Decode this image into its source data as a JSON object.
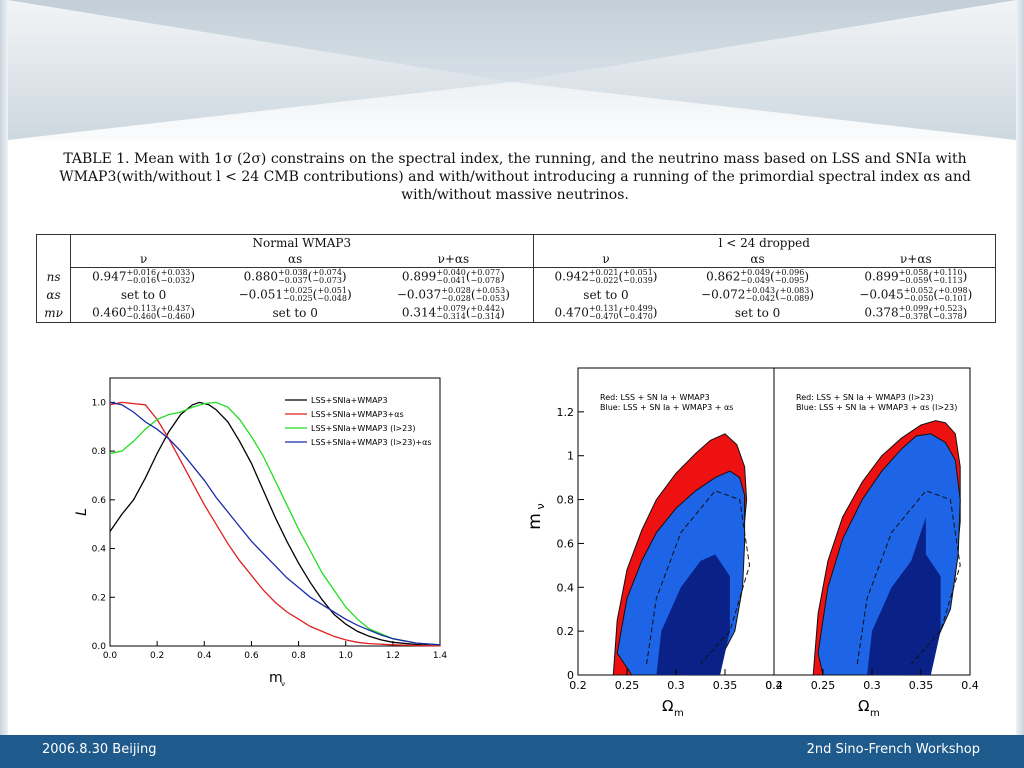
{
  "caption": {
    "text": "TABLE 1. Mean with 1σ (2σ) constrains on the spectral index, the running, and the neutrino mass based on LSS and SNIa with WMAP3(with/without l < 24 CMB contributions) and with/without introducing a running of the primordial spectral index αs and with/without massive neutrinos."
  },
  "table": {
    "group_headers": [
      "Normal WMAP3",
      "l < 24 dropped"
    ],
    "column_headers": [
      "ν",
      "αs",
      "ν+αs",
      "ν",
      "αs",
      "ν+αs"
    ],
    "rows": [
      {
        "label": "ns",
        "cells": [
          {
            "v": "0.947",
            "up": "+0.016",
            "dn": "−0.016",
            "up2": "+0.033",
            "dn2": "−0.032"
          },
          {
            "v": "0.880",
            "up": "+0.038",
            "dn": "−0.037",
            "up2": "+0.074",
            "dn2": "−0.073"
          },
          {
            "v": "0.899",
            "up": "+0.040",
            "dn": "−0.041",
            "up2": "+0.077",
            "dn2": "−0.078"
          },
          {
            "v": "0.942",
            "up": "+0.021",
            "dn": "−0.022",
            "up2": "+0.051",
            "dn2": "−0.039"
          },
          {
            "v": "0.862",
            "up": "+0.049",
            "dn": "−0.049",
            "up2": "+0.096",
            "dn2": "−0.095"
          },
          {
            "v": "0.899",
            "up": "+0.058",
            "dn": "−0.059",
            "up2": "+0.110",
            "dn2": "−0.113"
          }
        ]
      },
      {
        "label": "αs",
        "cells": [
          {
            "text": "set to 0"
          },
          {
            "v": "−0.051",
            "up": "+0.025",
            "dn": "−0.025",
            "up2": "+0.051",
            "dn2": "−0.048"
          },
          {
            "v": "−0.037",
            "up": "+0.028",
            "dn": "−0.028",
            "up2": "+0.053",
            "dn2": "−0.053"
          },
          {
            "text": "set to 0"
          },
          {
            "v": "−0.072",
            "up": "+0.043",
            "dn": "−0.042",
            "up2": "+0.083",
            "dn2": "−0.089"
          },
          {
            "v": "−0.045",
            "up": "+0.052",
            "dn": "−0.050",
            "up2": "+0.098",
            "dn2": "−0.101"
          }
        ]
      },
      {
        "label": "mν",
        "cells": [
          {
            "v": "0.460",
            "up": "+0.113",
            "dn": "−0.460",
            "up2": "+0.437",
            "dn2": "−0.460"
          },
          {
            "text": "set to 0"
          },
          {
            "v": "0.314",
            "up": "+0.079",
            "dn": "−0.314",
            "up2": "+0.442",
            "dn2": "−0.314"
          },
          {
            "v": "0.470",
            "up": "+0.131",
            "dn": "−0.470",
            "up2": "+0.499",
            "dn2": "−0.470"
          },
          {
            "text": "set to 0"
          },
          {
            "v": "0.378",
            "up": "+0.099",
            "dn": "−0.378",
            "up2": "+0.523",
            "dn2": "−0.378"
          }
        ]
      }
    ]
  },
  "colors": {
    "footer_bg": "#1f5a8c",
    "likelihood_black": "#000000",
    "likelihood_red": "#e02020",
    "likelihood_green": "#22dd22",
    "likelihood_blue": "#1a2aa8",
    "contour_red": "#ee1111",
    "contour_blue_outer": "#1e64e6",
    "contour_blue_inner": "#0a2288"
  },
  "footer": {
    "left": "2006.8.30 Beijing",
    "right": "2nd Sino-French Workshop"
  },
  "chart_data": [
    {
      "type": "line",
      "xlabel": "m",
      "xlabel_sub": "ν",
      "ylabel": "L",
      "xlim": [
        0.0,
        1.4
      ],
      "ylim": [
        0.0,
        1.1
      ],
      "x_ticks": [
        0.0,
        0.2,
        0.4,
        0.6,
        0.8,
        1.0,
        1.2,
        1.4
      ],
      "y_ticks": [
        0.0,
        0.2,
        0.4,
        0.6,
        0.8,
        1.0
      ],
      "x_tick_labels": [
        "0.0",
        "0.2",
        "0.4",
        "0.6",
        "0.8",
        "1.0",
        "1.2",
        "1.4"
      ],
      "y_tick_labels": [
        "0.0",
        "0.2",
        "0.4",
        "0.6",
        "0.8",
        "1.0"
      ],
      "legend_position": "top-right",
      "series": [
        {
          "name": "LSS+SNIa+WMAP3",
          "color": "#000000",
          "x": [
            0.0,
            0.05,
            0.1,
            0.15,
            0.2,
            0.25,
            0.3,
            0.35,
            0.38,
            0.42,
            0.45,
            0.5,
            0.55,
            0.6,
            0.65,
            0.7,
            0.75,
            0.8,
            0.85,
            0.9,
            0.95,
            1.0,
            1.05,
            1.1,
            1.15,
            1.2,
            1.3,
            1.4
          ],
          "y": [
            0.47,
            0.54,
            0.6,
            0.69,
            0.79,
            0.88,
            0.95,
            0.99,
            1.0,
            0.99,
            0.97,
            0.92,
            0.84,
            0.75,
            0.64,
            0.53,
            0.43,
            0.34,
            0.26,
            0.19,
            0.13,
            0.09,
            0.06,
            0.04,
            0.025,
            0.015,
            0.006,
            0.002
          ]
        },
        {
          "name": "LSS+SNIa+WMAP3+αs",
          "color": "#e02020",
          "x": [
            0.0,
            0.05,
            0.1,
            0.15,
            0.2,
            0.25,
            0.3,
            0.35,
            0.4,
            0.45,
            0.5,
            0.55,
            0.6,
            0.65,
            0.7,
            0.75,
            0.8,
            0.85,
            0.9,
            0.95,
            1.0,
            1.05,
            1.1,
            1.2,
            1.3,
            1.4
          ],
          "y": [
            0.99,
            1.0,
            0.995,
            0.99,
            0.93,
            0.85,
            0.76,
            0.67,
            0.58,
            0.5,
            0.42,
            0.35,
            0.29,
            0.23,
            0.18,
            0.14,
            0.11,
            0.08,
            0.06,
            0.04,
            0.025,
            0.015,
            0.01,
            0.005,
            0.002,
            0.001
          ]
        },
        {
          "name": "LSS+SNIa+WMAP3 (l>23)",
          "color": "#22dd22",
          "x": [
            0.0,
            0.05,
            0.1,
            0.15,
            0.2,
            0.25,
            0.3,
            0.35,
            0.4,
            0.45,
            0.5,
            0.55,
            0.6,
            0.65,
            0.7,
            0.75,
            0.8,
            0.85,
            0.9,
            0.95,
            1.0,
            1.05,
            1.1,
            1.15,
            1.2,
            1.3,
            1.4
          ],
          "y": [
            0.79,
            0.8,
            0.84,
            0.89,
            0.93,
            0.95,
            0.96,
            0.98,
            0.995,
            1.0,
            0.98,
            0.93,
            0.86,
            0.78,
            0.68,
            0.58,
            0.48,
            0.39,
            0.3,
            0.23,
            0.16,
            0.11,
            0.07,
            0.05,
            0.03,
            0.012,
            0.004
          ]
        },
        {
          "name": "LSS+SNIa+WMAP3 (l>23)+αs",
          "color": "#1a2aa8",
          "x": [
            0.0,
            0.05,
            0.1,
            0.15,
            0.2,
            0.25,
            0.3,
            0.35,
            0.4,
            0.45,
            0.5,
            0.55,
            0.6,
            0.65,
            0.7,
            0.75,
            0.8,
            0.85,
            0.9,
            0.95,
            1.0,
            1.05,
            1.1,
            1.15,
            1.2,
            1.3,
            1.4
          ],
          "y": [
            1.0,
            0.99,
            0.96,
            0.92,
            0.89,
            0.85,
            0.8,
            0.74,
            0.68,
            0.61,
            0.55,
            0.49,
            0.43,
            0.38,
            0.33,
            0.28,
            0.24,
            0.2,
            0.17,
            0.14,
            0.11,
            0.085,
            0.065,
            0.045,
            0.03,
            0.012,
            0.005
          ]
        }
      ]
    },
    {
      "type": "area",
      "panels": [
        {
          "legend": [
            "Red: LSS + SN Ia + WMAP3",
            "Blue: LSS + SN Ia + WMAP3 + αs"
          ],
          "x_tick_labels": [
            "0.2",
            "0.25",
            "0.3",
            "0.35",
            "0.4"
          ],
          "xlabel": "Ω",
          "xlabel_sub": "m"
        },
        {
          "legend": [
            "Red: LSS + SN Ia + WMAP3 (l>23)",
            "Blue: LSS + SN Ia + WMAP3 + αs (l>23)"
          ],
          "x_tick_labels": [
            "0.2",
            "0.25",
            "0.3",
            "0.35",
            "0.4"
          ],
          "xlabel": "Ω",
          "xlabel_sub": "m"
        }
      ],
      "ylabel": "m",
      "ylabel_sub": "ν",
      "y_tick_labels": [
        "0",
        "0.2",
        "0.4",
        "0.6",
        "0.8",
        "1",
        "1.2"
      ],
      "xlim": [
        0.2,
        0.4
      ],
      "ylim": [
        0.0,
        1.4
      ],
      "contours": [
        {
          "panel": 0,
          "name": "Red",
          "color": "#ee1111",
          "omega_m": [
            0.236,
            0.24,
            0.25,
            0.265,
            0.28,
            0.3,
            0.32,
            0.335,
            0.35,
            0.362,
            0.37,
            0.372,
            0.368,
            0.36,
            0.345,
            0.33,
            0.3,
            0.27,
            0.25,
            0.24,
            0.236
          ],
          "m_nu": [
            0.0,
            0.25,
            0.48,
            0.66,
            0.8,
            0.92,
            1.01,
            1.07,
            1.1,
            1.05,
            0.95,
            0.8,
            0.6,
            0.4,
            0.2,
            0.06,
            0.0,
            0.0,
            0.0,
            0.0,
            0.0
          ]
        },
        {
          "panel": 0,
          "name": "Blue",
          "color": "#1e64e6",
          "omega_m": [
            0.24,
            0.25,
            0.265,
            0.28,
            0.3,
            0.32,
            0.34,
            0.355,
            0.365,
            0.37,
            0.37,
            0.368,
            0.36,
            0.34,
            0.31,
            0.28,
            0.255,
            0.24
          ],
          "m_nu": [
            0.1,
            0.35,
            0.52,
            0.65,
            0.76,
            0.84,
            0.9,
            0.93,
            0.9,
            0.82,
            0.6,
            0.4,
            0.2,
            0.03,
            0.0,
            0.0,
            0.0,
            0.1
          ]
        },
        {
          "panel": 1,
          "name": "Red",
          "color": "#ee1111",
          "omega_m": [
            0.24,
            0.245,
            0.255,
            0.27,
            0.29,
            0.31,
            0.33,
            0.35,
            0.365,
            0.375,
            0.385,
            0.39,
            0.39,
            0.385,
            0.37,
            0.345,
            0.31,
            0.27,
            0.25,
            0.24
          ],
          "m_nu": [
            0.0,
            0.28,
            0.52,
            0.72,
            0.88,
            1.0,
            1.08,
            1.14,
            1.16,
            1.15,
            1.1,
            0.95,
            0.7,
            0.45,
            0.2,
            0.05,
            0.0,
            0.0,
            0.0,
            0.0
          ]
        },
        {
          "panel": 1,
          "name": "Blue",
          "color": "#1e64e6",
          "omega_m": [
            0.245,
            0.255,
            0.27,
            0.29,
            0.31,
            0.33,
            0.345,
            0.36,
            0.375,
            0.385,
            0.39,
            0.388,
            0.38,
            0.36,
            0.33,
            0.3,
            0.27,
            0.25,
            0.245
          ],
          "m_nu": [
            0.1,
            0.4,
            0.62,
            0.8,
            0.93,
            1.03,
            1.09,
            1.1,
            1.06,
            0.98,
            0.8,
            0.55,
            0.3,
            0.1,
            0.0,
            0.0,
            0.0,
            0.0,
            0.1
          ]
        }
      ]
    }
  ]
}
